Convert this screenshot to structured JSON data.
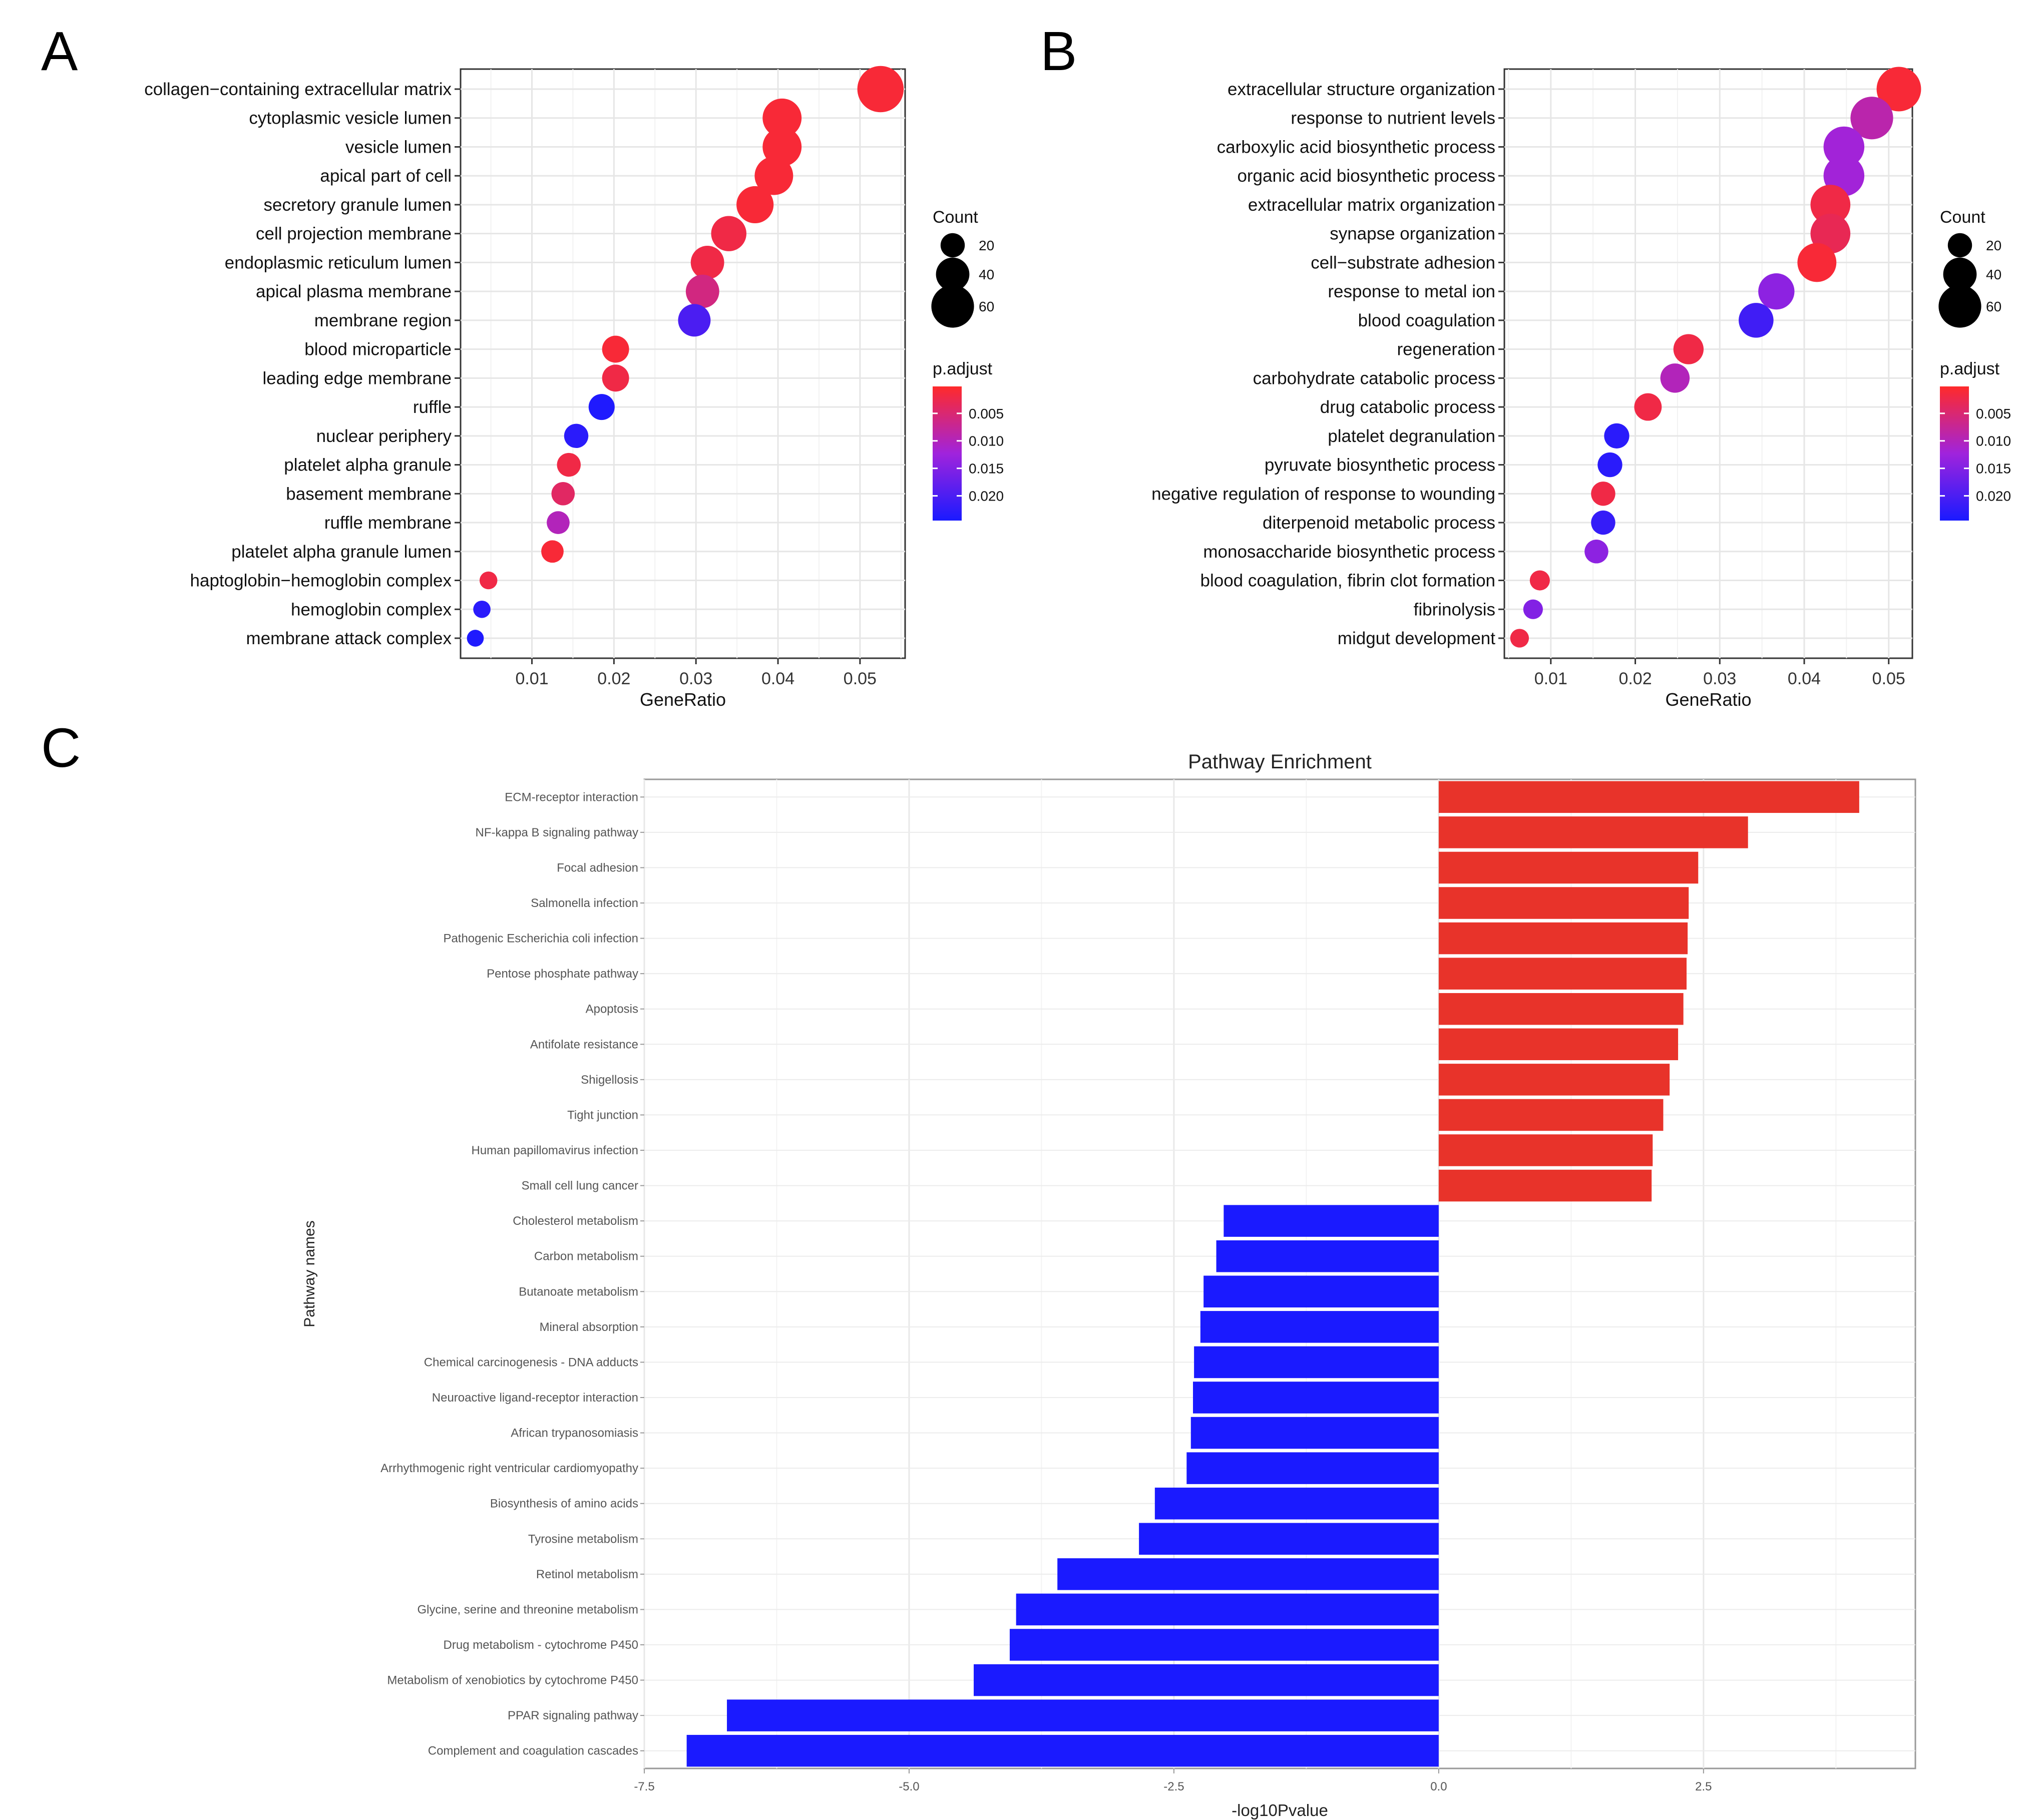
{
  "panels": {
    "a": "A",
    "b": "B",
    "c": "C"
  },
  "chart_data": [
    {
      "id": "A",
      "type": "scatter",
      "title": "",
      "xlabel": "GeneRatio",
      "ylabel": "",
      "xlim": [
        0.0013,
        0.0555
      ],
      "xticks": [
        0.01,
        0.02,
        0.03,
        0.04,
        0.05
      ],
      "xtick_labels": [
        "0.01",
        "0.02",
        "0.03",
        "0.04",
        "0.05"
      ],
      "categories": [
        "collagen−containing extracellular matrix",
        "cytoplasmic vesicle lumen",
        "vesicle lumen",
        "apical part of cell",
        "secretory granule lumen",
        "cell projection membrane",
        "endoplasmic reticulum lumen",
        "apical plasma membrane",
        "membrane region",
        "blood microparticle",
        "leading edge membrane",
        "ruffle",
        "nuclear periphery",
        "platelet alpha granule",
        "basement membrane",
        "ruffle membrane",
        "platelet alpha granule lumen",
        "haptoglobin−hemoglobin complex",
        "hemoglobin complex",
        "membrane attack complex"
      ],
      "x": [
        0.0525,
        0.0405,
        0.0405,
        0.0395,
        0.0372,
        0.034,
        0.0314,
        0.0308,
        0.0298,
        0.0202,
        0.0202,
        0.0185,
        0.0154,
        0.0145,
        0.0138,
        0.0132,
        0.0125,
        0.0047,
        0.0039,
        0.0031
      ],
      "count": [
        68,
        52,
        52,
        51,
        48,
        44,
        40,
        40,
        38,
        26,
        26,
        24,
        20,
        19,
        18,
        17,
        16,
        6,
        5,
        4
      ],
      "p_adjust": [
        0.001,
        0.001,
        0.001,
        0.001,
        0.001,
        0.002,
        0.002,
        0.006,
        0.02,
        0.001,
        0.002,
        0.024,
        0.023,
        0.002,
        0.004,
        0.01,
        0.001,
        0.002,
        0.023,
        0.024
      ],
      "legend_size": {
        "title": "Count",
        "values": [
          20,
          40,
          60
        ],
        "labels": [
          "20",
          "40",
          "60"
        ]
      },
      "legend_color": {
        "title": "p.adjust",
        "ticks": [
          0.005,
          0.01,
          0.015,
          0.02
        ],
        "tick_labels": [
          "0.005",
          "0.010",
          "0.015",
          "0.020"
        ],
        "range": [
          0.0001,
          0.0245
        ],
        "low_color": "#ff2a2a",
        "high_color": "#1a1aff"
      }
    },
    {
      "id": "B",
      "type": "scatter",
      "title": "",
      "xlabel": "GeneRatio",
      "ylabel": "",
      "xlim": [
        0.0045,
        0.0528
      ],
      "xticks": [
        0.01,
        0.02,
        0.03,
        0.04,
        0.05
      ],
      "xtick_labels": [
        "0.01",
        "0.02",
        "0.03",
        "0.04",
        "0.05"
      ],
      "categories": [
        "extracellular structure organization",
        "response to nutrient levels",
        "carboxylic acid biosynthetic process",
        "organic acid biosynthetic process",
        "extracellular matrix organization",
        "synapse organization",
        "cell−substrate adhesion",
        "response to metal ion",
        "blood coagulation",
        "regeneration",
        "carbohydrate catabolic process",
        "drug catabolic process",
        "platelet degranulation",
        "pyruvate biosynthetic process",
        "negative regulation of response to wounding",
        "diterpenoid metabolic process",
        "monosaccharide biosynthetic process",
        "blood coagulation, fibrin clot formation",
        "fibrinolysis",
        "midgut development"
      ],
      "x": [
        0.0512,
        0.048,
        0.0447,
        0.0447,
        0.0431,
        0.0431,
        0.0415,
        0.0367,
        0.0343,
        0.0263,
        0.0247,
        0.0215,
        0.0178,
        0.017,
        0.0162,
        0.0162,
        0.0154,
        0.0087,
        0.0079,
        0.0063
      ],
      "count": [
        64,
        60,
        56,
        56,
        54,
        54,
        52,
        46,
        43,
        33,
        31,
        27,
        22,
        21,
        20,
        20,
        19,
        11,
        10,
        8
      ],
      "p_adjust": [
        0.001,
        0.009,
        0.012,
        0.012,
        0.002,
        0.003,
        0.001,
        0.014,
        0.021,
        0.002,
        0.01,
        0.002,
        0.023,
        0.023,
        0.002,
        0.022,
        0.014,
        0.002,
        0.015,
        0.002
      ],
      "legend_size": {
        "title": "Count",
        "values": [
          20,
          40,
          60
        ],
        "labels": [
          "20",
          "40",
          "60"
        ]
      },
      "legend_color": {
        "title": "p.adjust",
        "ticks": [
          0.005,
          0.01,
          0.015,
          0.02
        ],
        "tick_labels": [
          "0.005",
          "0.010",
          "0.015",
          "0.020"
        ],
        "range": [
          0.0001,
          0.0245
        ],
        "low_color": "#ff2a2a",
        "high_color": "#1a1aff"
      }
    },
    {
      "id": "C",
      "type": "bar",
      "orientation": "horizontal",
      "title": "Pathway Enrichment",
      "xlabel": "-log10Pvalue",
      "ylabel": "Pathway names",
      "xlim": [
        -7.5,
        4.5
      ],
      "xticks": [
        -7.5,
        -5.0,
        -2.5,
        0.0,
        2.5
      ],
      "xtick_labels": [
        "-7.5",
        "-5.0",
        "-2.5",
        "0.0",
        "2.5"
      ],
      "positive_color": "#e8332a",
      "negative_color": "#1a1aff",
      "categories": [
        "ECM-receptor interaction",
        "NF-kappa B signaling pathway",
        "Focal adhesion",
        "Salmonella infection",
        "Pathogenic Escherichia coli infection",
        "Pentose phosphate pathway",
        "Apoptosis",
        "Antifolate resistance",
        "Shigellosis",
        "Tight junction",
        "Human papillomavirus infection",
        "Small cell lung cancer",
        "Cholesterol metabolism",
        "Carbon metabolism",
        "Butanoate metabolism",
        "Mineral absorption",
        "Chemical carcinogenesis - DNA adducts",
        "Neuroactive ligand-receptor interaction",
        "African trypanosomiasis",
        "Arrhythmogenic right ventricular cardiomyopathy",
        "Biosynthesis of amino acids",
        "Tyrosine metabolism",
        "Retinol metabolism",
        "Glycine, serine and threonine metabolism",
        "Drug metabolism - cytochrome P450",
        "Metabolism of xenobiotics by cytochrome P450",
        "PPAR signaling pathway",
        "Complement and coagulation cascades"
      ],
      "values": [
        3.97,
        2.92,
        2.45,
        2.36,
        2.35,
        2.34,
        2.31,
        2.26,
        2.18,
        2.12,
        2.02,
        2.01,
        -2.03,
        -2.1,
        -2.22,
        -2.25,
        -2.31,
        -2.32,
        -2.34,
        -2.38,
        -2.68,
        -2.83,
        -3.6,
        -3.99,
        -4.05,
        -4.39,
        -6.72,
        -7.1
      ]
    }
  ]
}
